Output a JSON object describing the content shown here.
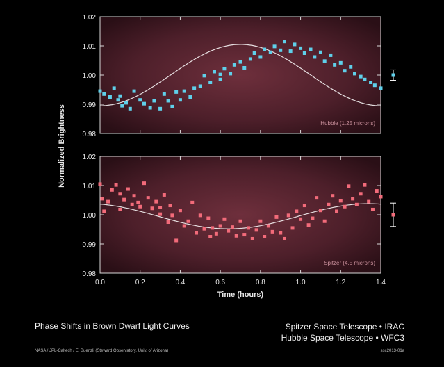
{
  "chart_data": [
    {
      "type": "scatter",
      "panel": "top",
      "label": "Hubble (1.25 microns)",
      "ylabel": "Normalized Brightness",
      "xlim": [
        0.0,
        1.4
      ],
      "ylim": [
        0.98,
        1.02
      ],
      "yticks": [
        "1.02",
        "1.01",
        "1.00",
        "0.99",
        "0.98"
      ],
      "point_color": "#5fd0ea",
      "fit_color": "#ffffff",
      "fit": {
        "mean": 1.0,
        "amplitude": 0.0105,
        "phase": -1.575,
        "period": 1.4
      },
      "x": [
        0.0,
        0.02,
        0.05,
        0.07,
        0.09,
        0.1,
        0.11,
        0.13,
        0.15,
        0.17,
        0.2,
        0.22,
        0.25,
        0.27,
        0.3,
        0.32,
        0.34,
        0.36,
        0.38,
        0.4,
        0.42,
        0.45,
        0.47,
        0.5,
        0.52,
        0.55,
        0.57,
        0.6,
        0.6,
        0.62,
        0.65,
        0.67,
        0.7,
        0.72,
        0.75,
        0.77,
        0.8,
        0.82,
        0.85,
        0.87,
        0.9,
        0.92,
        0.95,
        0.97,
        1.0,
        1.02,
        1.05,
        1.07,
        1.1,
        1.12,
        1.15,
        1.17,
        1.2,
        1.22,
        1.25,
        1.27,
        1.3,
        1.32,
        1.35,
        1.37,
        1.4
      ],
      "y": [
        0.9945,
        0.9935,
        0.9925,
        0.9955,
        0.9915,
        0.9928,
        0.9895,
        0.9905,
        0.9885,
        0.9945,
        0.9915,
        0.9902,
        0.9888,
        0.9912,
        0.9885,
        0.9935,
        0.9912,
        0.9892,
        0.9942,
        0.9915,
        0.9945,
        0.9925,
        0.9955,
        0.9962,
        0.9998,
        0.9975,
        1.0012,
        1.0002,
        0.9985,
        1.0022,
        1.0005,
        1.0035,
        1.0045,
        1.0025,
        1.0055,
        1.0075,
        1.0062,
        1.0088,
        1.0078,
        1.0098,
        1.0085,
        1.0115,
        1.0082,
        1.0105,
        1.0092,
        1.0075,
        1.0088,
        1.0062,
        1.0078,
        1.0048,
        1.0068,
        1.0035,
        1.0042,
        1.0015,
        1.0028,
        1.0005,
        0.9995,
        0.9985,
        0.9975,
        0.9965,
        0.9955
      ],
      "errorbar": {
        "center": 1.0,
        "half": 0.0018
      }
    },
    {
      "type": "scatter",
      "panel": "bottom",
      "label": "Spitzer (4.5 microns)",
      "xlabel": "Time (hours)",
      "xlim": [
        0.0,
        1.4
      ],
      "ylim": [
        0.98,
        1.02
      ],
      "yticks": [
        "1.02",
        "1.01",
        "1.00",
        "0.99",
        "0.98"
      ],
      "xticks": [
        "0.0",
        "0.2",
        "0.4",
        "0.6",
        "0.8",
        "1.0",
        "1.2",
        "1.4"
      ],
      "point_color": "#f26b7a",
      "fit_color": "#ffffff",
      "fit": {
        "mean": 0.9995,
        "amplitude": 0.0043,
        "phase": -4.44,
        "period": 1.4
      },
      "x": [
        0.0,
        0.01,
        0.02,
        0.04,
        0.06,
        0.08,
        0.1,
        0.1,
        0.12,
        0.14,
        0.16,
        0.17,
        0.19,
        0.2,
        0.22,
        0.24,
        0.26,
        0.28,
        0.3,
        0.3,
        0.32,
        0.34,
        0.35,
        0.36,
        0.38,
        0.4,
        0.42,
        0.44,
        0.46,
        0.48,
        0.5,
        0.52,
        0.54,
        0.55,
        0.56,
        0.58,
        0.6,
        0.62,
        0.64,
        0.66,
        0.68,
        0.7,
        0.72,
        0.74,
        0.76,
        0.78,
        0.8,
        0.82,
        0.84,
        0.86,
        0.88,
        0.9,
        0.92,
        0.94,
        0.96,
        0.98,
        1.0,
        1.02,
        1.04,
        1.06,
        1.08,
        1.1,
        1.12,
        1.14,
        1.16,
        1.18,
        1.2,
        1.22,
        1.24,
        1.26,
        1.28,
        1.3,
        1.32,
        1.34,
        1.36,
        1.38,
        1.4
      ],
      "y": [
        1.0105,
        1.0055,
        1.0012,
        1.0045,
        1.0085,
        1.0102,
        1.0018,
        1.0072,
        1.0052,
        1.0088,
        1.0035,
        1.0065,
        1.0042,
        1.0028,
        1.0108,
        1.0058,
        1.0022,
        1.0045,
        1.0002,
        1.0025,
        1.0068,
        0.9975,
        1.0032,
        0.9998,
        0.9912,
        1.0015,
        0.9962,
        0.9978,
        1.0042,
        0.9938,
        0.9998,
        0.9952,
        0.9988,
        0.9925,
        0.9955,
        0.9935,
        0.9962,
        0.9985,
        0.9945,
        0.9958,
        0.9928,
        0.9978,
        0.9932,
        0.9955,
        0.9918,
        0.9948,
        0.9978,
        0.9925,
        0.9962,
        0.9942,
        0.9992,
        0.9938,
        0.9918,
        0.9998,
        0.9955,
        1.0012,
        0.9985,
        1.0032,
        0.9965,
        0.9988,
        1.0058,
        1.0015,
        0.9978,
        1.0035,
        1.0065,
        1.0012,
        1.0048,
        1.0028,
        1.0098,
        1.0055,
        1.0035,
        1.0072,
        1.0102,
        1.0045,
        1.0018,
        1.0082,
        1.0062
      ],
      "errorbar": {
        "center": 1.0,
        "half": 0.004
      }
    }
  ],
  "captions": {
    "title": "Phase Shifts in Brown Dwarf Light Curves",
    "instrument_1": "Spitzer Space Telescope • IRAC",
    "instrument_2": "Hubble Space Telescope • WFC3",
    "credit": "NASA / JPL-Caltech / E. Buenzli (Steward Observatory, Univ. of Arizona)",
    "image_id": "ssc2013-01a"
  }
}
